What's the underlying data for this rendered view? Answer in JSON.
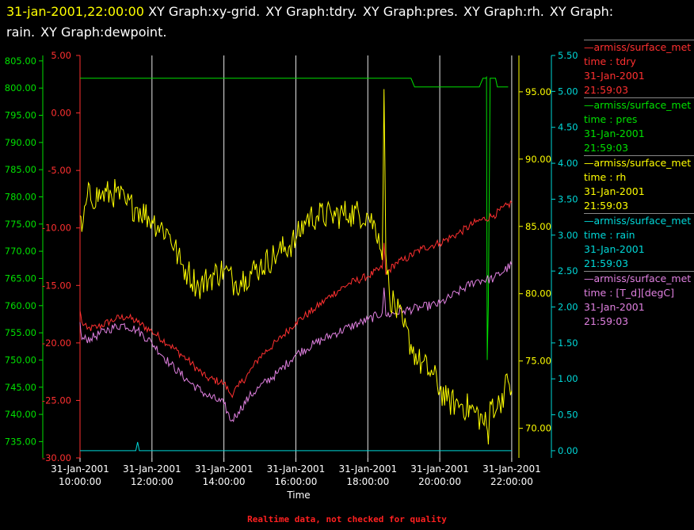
{
  "title": {
    "timestamp": "31-jan-2001,22:00:00",
    "parts": [
      "XY Graph:xy-grid.",
      "XY Graph:tdry.",
      "XY Graph:pres.",
      "XY Graph:rh.",
      "XY Graph:",
      "rain.",
      "XY Graph:dewpoint."
    ]
  },
  "legend": [
    {
      "name": "—armiss/surface_met",
      "var": "time : tdry",
      "date": "31-Jan-2001",
      "time": "21:59:03",
      "color": "#ff3030"
    },
    {
      "name": "—armiss/surface_met",
      "var": "time : pres",
      "date": "31-Jan-2001",
      "time": "21:59:03",
      "color": "#00e000"
    },
    {
      "name": "—armiss/surface_met",
      "var": "time : rh",
      "date": "31-Jan-2001",
      "time": "21:59:03",
      "color": "#ffff00"
    },
    {
      "name": "—armiss/surface_met",
      "var": "time : rain",
      "date": "31-Jan-2001",
      "time": "21:59:03",
      "color": "#00d8d8"
    },
    {
      "name": "—armiss/surface_met",
      "var": "time : [T_d][degC]",
      "date": "31-Jan-2001",
      "time": "21:59:03",
      "color": "#e080e0"
    }
  ],
  "footer": "Realtime data, not checked for quality",
  "chart_data": {
    "type": "line",
    "xlabel": "Time",
    "x_ticks": [
      {
        "hour": 10,
        "date": "31-Jan-2001",
        "time": "10:00:00"
      },
      {
        "hour": 12,
        "date": "31-Jan-2001",
        "time": "12:00:00"
      },
      {
        "hour": 14,
        "date": "31-Jan-2001",
        "time": "14:00:00"
      },
      {
        "hour": 16,
        "date": "31-Jan-2001",
        "time": "16:00:00"
      },
      {
        "hour": 18,
        "date": "31-Jan-2001",
        "time": "18:00:00"
      },
      {
        "hour": 20,
        "date": "31-Jan-2001",
        "time": "20:00:00"
      },
      {
        "hour": 22,
        "date": "31-Jan-2001",
        "time": "22:00:00"
      }
    ],
    "xlim_hours": [
      10,
      22.2
    ],
    "grid": true,
    "axes": {
      "pres": {
        "color": "#00e000",
        "ylim": [
          732,
          806
        ],
        "ticks": [
          "735.00",
          "740.00",
          "745.00",
          "750.00",
          "755.00",
          "760.00",
          "765.00",
          "770.00",
          "775.00",
          "780.00",
          "785.00",
          "790.00",
          "795.00",
          "800.00",
          "805.00"
        ]
      },
      "tdry": {
        "color": "#ff3030",
        "ylim": [
          -30,
          5
        ],
        "ticks": [
          "-30.00",
          "-25.00",
          "-20.00",
          "-15.00",
          "-10.00",
          "-5.00",
          "0.00",
          "5.00"
        ]
      },
      "rh": {
        "color": "#ffff00",
        "ylim": [
          67.8,
          97.7
        ],
        "ticks": [
          "70.00",
          "75.00",
          "80.00",
          "85.00",
          "90.00",
          "95.00"
        ]
      },
      "rain": {
        "color": "#00d8d8",
        "ylim": [
          -0.1,
          5.5
        ],
        "ticks": [
          "0.00",
          "0.50",
          "1.00",
          "1.50",
          "2.00",
          "2.50",
          "3.00",
          "3.50",
          "4.00",
          "4.50",
          "5.00",
          "5.50"
        ]
      }
    },
    "series": [
      {
        "name": "time : pres",
        "axis": "pres",
        "color": "#00e000",
        "points": [
          [
            10.0,
            801.8
          ],
          [
            19.2,
            801.8
          ],
          [
            19.3,
            800.2
          ],
          [
            21.1,
            800.2
          ],
          [
            21.2,
            801.8
          ],
          [
            21.28,
            801.8
          ],
          [
            21.3,
            802
          ],
          [
            21.32,
            750
          ],
          [
            21.35,
            760
          ],
          [
            21.4,
            801.8
          ],
          [
            21.55,
            801.8
          ],
          [
            21.6,
            800.2
          ],
          [
            21.9,
            800.2
          ]
        ]
      },
      {
        "name": "time : tdry",
        "axis": "tdry",
        "color": "#ff3030",
        "noise": 0.35,
        "points": [
          [
            10.0,
            -17.2
          ],
          [
            10.05,
            -18.2
          ],
          [
            10.2,
            -18.8
          ],
          [
            10.5,
            -18.6
          ],
          [
            11.0,
            -17.9
          ],
          [
            11.3,
            -17.7
          ],
          [
            11.6,
            -18.2
          ],
          [
            12.0,
            -19.0
          ],
          [
            12.5,
            -20.2
          ],
          [
            13.0,
            -21.5
          ],
          [
            13.5,
            -23.0
          ],
          [
            14.0,
            -23.5
          ],
          [
            14.2,
            -24.5
          ],
          [
            14.4,
            -23.8
          ],
          [
            14.7,
            -22.6
          ],
          [
            15.0,
            -21.2
          ],
          [
            15.5,
            -19.8
          ],
          [
            16.0,
            -18.2
          ],
          [
            16.5,
            -17.1
          ],
          [
            17.0,
            -15.8
          ],
          [
            17.5,
            -14.8
          ],
          [
            18.0,
            -14.2
          ],
          [
            18.4,
            -13.5
          ],
          [
            18.45,
            -11.3
          ],
          [
            18.5,
            -14.0
          ],
          [
            18.8,
            -13.0
          ],
          [
            19.0,
            -12.8
          ],
          [
            19.5,
            -11.8
          ],
          [
            20.0,
            -11.3
          ],
          [
            20.5,
            -10.5
          ],
          [
            21.0,
            -9.5
          ],
          [
            21.5,
            -8.9
          ],
          [
            22.0,
            -7.8
          ]
        ]
      },
      {
        "name": "time : [T_d][degC]",
        "axis": "tdry",
        "color": "#e080e0",
        "noise": 0.4,
        "points": [
          [
            10.0,
            -18.2
          ],
          [
            10.05,
            -19.7
          ],
          [
            10.3,
            -19.6
          ],
          [
            10.8,
            -18.8
          ],
          [
            11.2,
            -18.4
          ],
          [
            11.6,
            -18.9
          ],
          [
            12.0,
            -20.0
          ],
          [
            12.5,
            -21.8
          ],
          [
            13.0,
            -23.3
          ],
          [
            13.5,
            -24.5
          ],
          [
            14.0,
            -25.3
          ],
          [
            14.2,
            -26.8
          ],
          [
            14.4,
            -26.0
          ],
          [
            14.7,
            -24.7
          ],
          [
            15.0,
            -23.8
          ],
          [
            15.5,
            -22.6
          ],
          [
            16.0,
            -21.0
          ],
          [
            16.5,
            -20.1
          ],
          [
            17.0,
            -19.3
          ],
          [
            17.5,
            -18.6
          ],
          [
            18.0,
            -18.0
          ],
          [
            18.4,
            -17.4
          ],
          [
            18.45,
            -15.2
          ],
          [
            18.5,
            -17.6
          ],
          [
            19.0,
            -17.2
          ],
          [
            19.5,
            -16.9
          ],
          [
            20.0,
            -16.6
          ],
          [
            20.5,
            -15.6
          ],
          [
            21.0,
            -14.6
          ],
          [
            21.5,
            -14.4
          ],
          [
            22.0,
            -13.2
          ]
        ]
      },
      {
        "name": "time : rh",
        "axis": "rh",
        "color": "#ffff00",
        "noise": 1.1,
        "points": [
          [
            10.0,
            85.8
          ],
          [
            10.05,
            84.6
          ],
          [
            10.2,
            87.2
          ],
          [
            10.6,
            87.3
          ],
          [
            11.0,
            87.5
          ],
          [
            11.3,
            86.6
          ],
          [
            11.6,
            86.4
          ],
          [
            12.0,
            85.5
          ],
          [
            12.5,
            84.4
          ],
          [
            12.8,
            82.2
          ],
          [
            13.0,
            81.6
          ],
          [
            13.3,
            80.5
          ],
          [
            13.6,
            81.2
          ],
          [
            14.0,
            81.8
          ],
          [
            14.3,
            80.8
          ],
          [
            14.6,
            81.3
          ],
          [
            15.0,
            82.0
          ],
          [
            15.5,
            83.0
          ],
          [
            16.0,
            84.0
          ],
          [
            16.3,
            85.6
          ],
          [
            16.6,
            85.8
          ],
          [
            17.0,
            85.8
          ],
          [
            17.5,
            86.0
          ],
          [
            18.0,
            85.9
          ],
          [
            18.3,
            84.5
          ],
          [
            18.4,
            82.5
          ],
          [
            18.45,
            95.2
          ],
          [
            18.5,
            83.0
          ],
          [
            18.6,
            80.0
          ],
          [
            19.0,
            77.5
          ],
          [
            19.4,
            75.0
          ],
          [
            19.8,
            74.0
          ],
          [
            20.2,
            72.0
          ],
          [
            20.6,
            71.8
          ],
          [
            21.0,
            71.2
          ],
          [
            21.3,
            70.2
          ],
          [
            21.35,
            68.8
          ],
          [
            21.4,
            72.0
          ],
          [
            21.6,
            71.5
          ],
          [
            21.9,
            73.5
          ],
          [
            22.0,
            72.8
          ]
        ]
      },
      {
        "name": "time : rain",
        "axis": "rain",
        "color": "#00d8d8",
        "points": [
          [
            10.0,
            0.0
          ],
          [
            11.55,
            0.0
          ],
          [
            11.6,
            0.12
          ],
          [
            11.65,
            0.0
          ],
          [
            22.0,
            0.0
          ]
        ]
      }
    ]
  }
}
